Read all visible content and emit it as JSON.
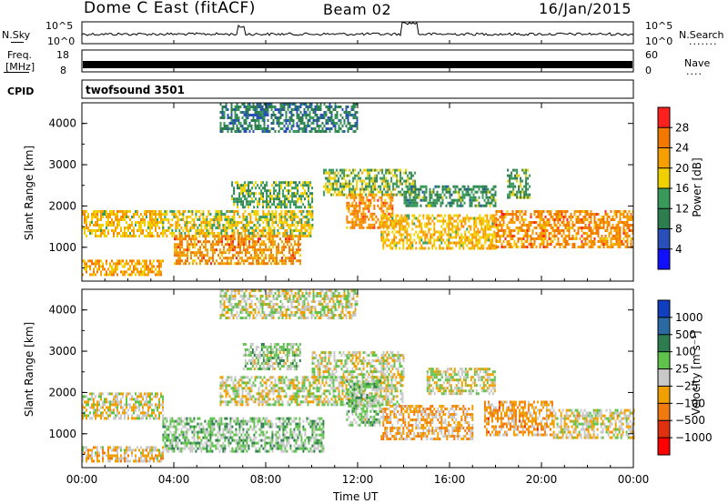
{
  "header": {
    "station": "Dome C East (fitACF)",
    "beam": "Beam 02",
    "date": "16/Jan/2015"
  },
  "strip_nsky": {
    "label": "N.Sky",
    "left_ticks": [
      "10^5",
      "10^0"
    ],
    "right_label": "N.Search",
    "right_ticks": [
      "10^5",
      "10^0"
    ],
    "right_legend_mark": "......."
  },
  "strip_freq": {
    "label_line1": "Freq.",
    "label_line2": "[MHz]",
    "left_ticks": [
      "18",
      "8"
    ],
    "right_label": "Nave",
    "right_ticks": [
      "60",
      "0"
    ],
    "right_legend_mark": "...."
  },
  "strip_cpid": {
    "label": "CPID",
    "program": "twofsound 3501"
  },
  "colors": {
    "power_scale": [
      "#1010ff",
      "#2850b8",
      "#2e7d4f",
      "#3a9a5c",
      "#f0d000",
      "#f5a000",
      "#f27800",
      "#ff2020"
    ],
    "velocity_scale": [
      "#1040c0",
      "#2a6aa0",
      "#2e7d50",
      "#5fc24a",
      "#c8c8c8",
      "#f0a000",
      "#f07a10",
      "#e03010",
      "#ff0000"
    ]
  },
  "chart_data": [
    {
      "type": "heatmap",
      "name": "power",
      "ylabel": "Slant Range [km]",
      "xlabel": "",
      "xlim": [
        "00:00",
        "24:00"
      ],
      "ylim": [
        180,
        4500
      ],
      "x_ticks": [
        "00:00",
        "04:00",
        "08:00",
        "12:00",
        "16:00",
        "20:00",
        "00:00"
      ],
      "y_ticks": [
        1000,
        2000,
        3000,
        4000
      ],
      "colorbar": {
        "label": "Power [dB]",
        "tick_labels": [
          "4",
          "8",
          "12",
          "16",
          "20",
          "24",
          "28"
        ],
        "range": [
          0,
          32
        ]
      },
      "regions": [
        {
          "t": [
            0.0,
            3.5
          ],
          "r": [
            1300,
            1900
          ],
          "level": 20
        },
        {
          "t": [
            0.0,
            3.5
          ],
          "r": [
            350,
            700
          ],
          "level": 22
        },
        {
          "t": [
            3.5,
            10.0
          ],
          "r": [
            1300,
            1900
          ],
          "level": 18
        },
        {
          "t": [
            4.0,
            9.5
          ],
          "r": [
            600,
            1300
          ],
          "level": 24
        },
        {
          "t": [
            6.5,
            10.0
          ],
          "r": [
            2000,
            2600
          ],
          "level": 14
        },
        {
          "t": [
            10.5,
            14.5
          ],
          "r": [
            2300,
            2900
          ],
          "level": 16
        },
        {
          "t": [
            11.5,
            13.5
          ],
          "r": [
            1500,
            2300
          ],
          "level": 24
        },
        {
          "t": [
            13.0,
            18.0
          ],
          "r": [
            1000,
            1800
          ],
          "level": 20
        },
        {
          "t": [
            14.0,
            18.0
          ],
          "r": [
            2000,
            2500
          ],
          "level": 12
        },
        {
          "t": [
            18.0,
            24.0
          ],
          "r": [
            1000,
            1900
          ],
          "level": 24
        },
        {
          "t": [
            18.5,
            19.5
          ],
          "r": [
            2200,
            2900
          ],
          "level": 14
        },
        {
          "t": [
            6.0,
            12.0
          ],
          "r": [
            3800,
            4500
          ],
          "level": 10
        }
      ]
    },
    {
      "type": "heatmap",
      "name": "velocity",
      "ylabel": "Slant Range [km]",
      "xlabel": "Time UT",
      "xlim": [
        "00:00",
        "24:00"
      ],
      "ylim": [
        180,
        4500
      ],
      "x_ticks": [
        "00:00",
        "04:00",
        "08:00",
        "12:00",
        "16:00",
        "20:00",
        "00:00"
      ],
      "y_ticks": [
        1000,
        2000,
        3000,
        4000
      ],
      "colorbar": {
        "label": "Velocity [m s⁻¹]",
        "tick_labels": [
          "1000",
          "500",
          "100",
          "25",
          "−25",
          "−100",
          "−500",
          "−1000"
        ],
        "range": [
          -1200,
          1200
        ]
      },
      "regions": [
        {
          "t": [
            0.0,
            3.5
          ],
          "r": [
            1400,
            2000
          ],
          "level": 60
        },
        {
          "t": [
            0.0,
            3.5
          ],
          "r": [
            350,
            700
          ],
          "level": 150
        },
        {
          "t": [
            3.5,
            10.5
          ],
          "r": [
            600,
            1400
          ],
          "level": -200
        },
        {
          "t": [
            7.0,
            9.5
          ],
          "r": [
            2600,
            3200
          ],
          "level": -150
        },
        {
          "t": [
            6.0,
            14.0
          ],
          "r": [
            1700,
            2400
          ],
          "level": 0
        },
        {
          "t": [
            10.0,
            14.0
          ],
          "r": [
            2400,
            3000
          ],
          "level": 0
        },
        {
          "t": [
            11.5,
            13.0
          ],
          "r": [
            1200,
            2300
          ],
          "level": -200
        },
        {
          "t": [
            13.0,
            17.0
          ],
          "r": [
            900,
            1700
          ],
          "level": 250
        },
        {
          "t": [
            15.0,
            18.0
          ],
          "r": [
            2000,
            2600
          ],
          "level": 10
        },
        {
          "t": [
            17.5,
            20.5
          ],
          "r": [
            1000,
            1800
          ],
          "level": 350
        },
        {
          "t": [
            20.5,
            24.0
          ],
          "r": [
            900,
            1600
          ],
          "level": 80
        },
        {
          "t": [
            6.0,
            12.0
          ],
          "r": [
            3800,
            4500
          ],
          "level": 0
        }
      ]
    }
  ]
}
